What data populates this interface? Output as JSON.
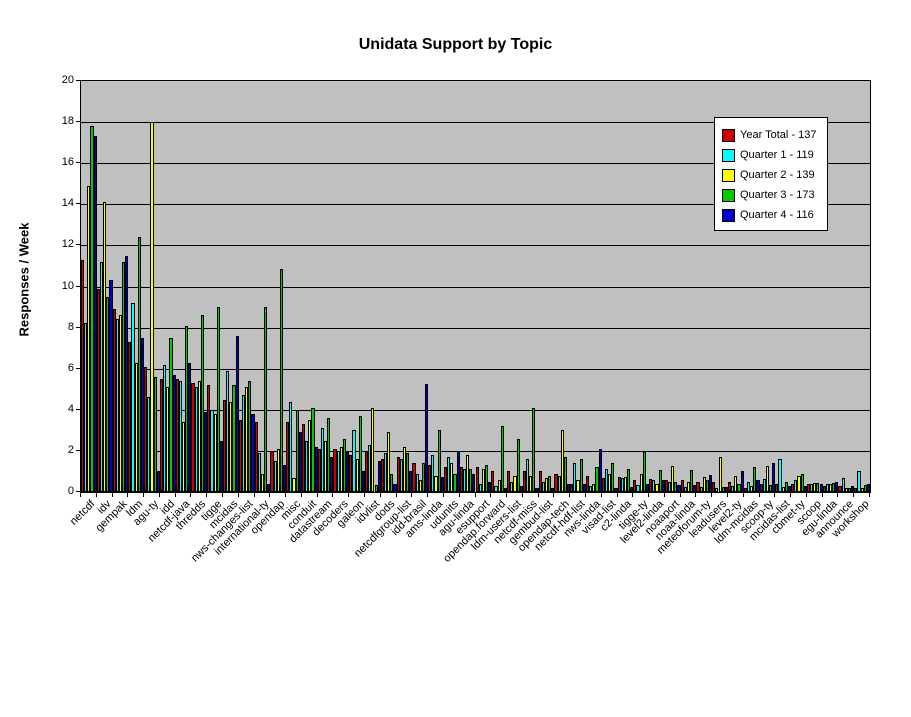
{
  "chart_data": {
    "type": "bar",
    "title": "Unidata Support by Topic",
    "xlabel": "",
    "ylabel": "Responses / Week",
    "ylim": [
      0,
      20
    ],
    "ytick_step": 2,
    "y_ticks": [
      0,
      2,
      4,
      6,
      8,
      10,
      12,
      14,
      16,
      18,
      20
    ],
    "grid": true,
    "plot_background": "#c0c0c0",
    "gridline_color": "#000000",
    "legend_position": "top-right",
    "categories": [
      "netcdf",
      "idv",
      "gempak",
      "ldm",
      "agu-ty",
      "idd",
      "netcdf-java",
      "thredds",
      "tigge",
      "mcidas",
      "nws-changes-list",
      "international-ty",
      "opendap",
      "misc",
      "conduit",
      "datastream",
      "decoders",
      "galeon",
      "idvlist",
      "dods",
      "netcdfgroup-list",
      "idd-brasil",
      "ams-linda",
      "udunits",
      "agu-linda",
      "esupport",
      "opendap.forward",
      "ldm-users-list",
      "netcdf-miss",
      "gembud-list",
      "opendap-tech",
      "netcdf-hdf-list",
      "nws-linda",
      "visad-list",
      "c2-linda",
      "tigge-ty",
      "level2-linda",
      "noaaport",
      "noaa-linda",
      "meteoforum-ty",
      "leadusers",
      "level2-ty",
      "ldm-mcidas",
      "scoop-ty",
      "mcidas-list",
      "cbmet-ty",
      "scoop",
      "egu-linda",
      "announce",
      "workshop"
    ],
    "series": [
      {
        "name": "Year Total - 137",
        "color": "#cc0000",
        "values": [
          11.3,
          9.9,
          8.9,
          7.3,
          6.1,
          5.5,
          5.5,
          5.3,
          5.2,
          4.5,
          3.5,
          3.4,
          2.0,
          3.4,
          3.3,
          2.1,
          2.1,
          1.8,
          2.0,
          1.6,
          1.7,
          1.4,
          1.3,
          1.2,
          1.2,
          1.2,
          1.0,
          1.0,
          1.0,
          1.0,
          0.9,
          0.4,
          0.8,
          0.7,
          0.75,
          0.6,
          0.65,
          0.6,
          0.6,
          0.5,
          0.5,
          0.5,
          0.2,
          0.4,
          0.4,
          0.4,
          0.4,
          0.3,
          0.3,
          0.2
        ]
      },
      {
        "name": "Quarter 1 - 119",
        "color": "#00ffff",
        "values": [
          8.2,
          11.2,
          8.4,
          9.2,
          4.6,
          6.2,
          5.4,
          5.1,
          4.0,
          5.9,
          4.7,
          1.9,
          1.5,
          4.4,
          2.5,
          3.1,
          2.0,
          3.0,
          2.3,
          1.9,
          1.6,
          0.9,
          1.8,
          1.7,
          1.1,
          0.4,
          0.3,
          0.5,
          1.6,
          0.5,
          0.8,
          1.4,
          0.3,
          1.1,
          0.7,
          0.35,
          0.6,
          0.5,
          0.25,
          0.25,
          0.2,
          0.3,
          0.5,
          0.65,
          1.6,
          0.6,
          0.4,
          0.4,
          0.7,
          1.0
        ]
      },
      {
        "name": "Quarter 2 - 139",
        "color": "#ffff00",
        "values": [
          14.9,
          14.1,
          8.6,
          6.3,
          18.0,
          5.1,
          3.4,
          5.4,
          3.8,
          4.4,
          5.1,
          0.9,
          2.1,
          0.7,
          3.5,
          2.5,
          2.2,
          1.6,
          4.1,
          2.9,
          2.2,
          0.6,
          0.8,
          1.4,
          1.8,
          1.1,
          0.6,
          0.8,
          0.8,
          0.7,
          3.0,
          0.6,
          0.4,
          0.9,
          0.75,
          0.9,
          0.4,
          1.25,
          0.5,
          0.75,
          1.7,
          0.8,
          0.3,
          1.25,
          0.25,
          0.8,
          0.45,
          0.4,
          0.2,
          0.2
        ]
      },
      {
        "name": "Quarter 3 - 173",
        "color": "#00cc00",
        "values": [
          17.8,
          9.5,
          11.2,
          12.4,
          5.6,
          7.5,
          8.1,
          8.6,
          9.0,
          5.2,
          5.4,
          9.0,
          10.85,
          4.0,
          4.1,
          3.6,
          2.6,
          3.7,
          0.35,
          0.9,
          1.9,
          1.4,
          3.0,
          0.9,
          1.1,
          1.3,
          3.2,
          2.6,
          4.1,
          0.8,
          1.7,
          1.6,
          1.2,
          1.4,
          1.1,
          1.95,
          1.05,
          0.5,
          1.05,
          0.6,
          0.25,
          0.4,
          1.2,
          0.35,
          0.5,
          0.9,
          0.45,
          0.45,
          0.2,
          0.35
        ]
      },
      {
        "name": "Quarter 4 - 116",
        "color": "#0000cc",
        "values": [
          17.3,
          10.3,
          11.5,
          7.5,
          1.0,
          5.7,
          6.3,
          3.9,
          2.5,
          7.6,
          3.8,
          0.4,
          1.3,
          2.9,
          2.2,
          1.7,
          2.0,
          1.0,
          1.5,
          0.4,
          1.0,
          5.25,
          0.75,
          2.0,
          0.9,
          0.5,
          0.2,
          0.3,
          0.2,
          0.2,
          0.4,
          0.4,
          2.1,
          0.2,
          0.25,
          0.4,
          0.6,
          0.35,
          0.35,
          0.85,
          0.25,
          1.0,
          0.6,
          1.4,
          0.3,
          0.3,
          0.4,
          0.5,
          0.3,
          0.4
        ]
      }
    ]
  },
  "legend": {
    "entries": [
      "Year Total - 137",
      "Quarter 1 - 119",
      "Quarter 2 - 139",
      "Quarter 3 - 173",
      "Quarter 4 - 116"
    ]
  }
}
